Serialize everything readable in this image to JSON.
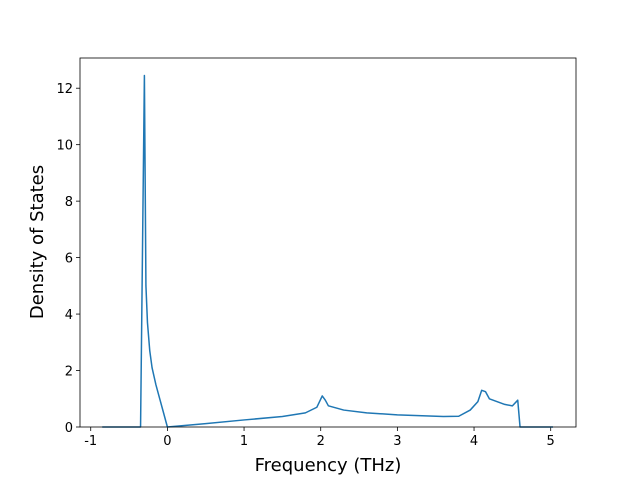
{
  "chart_data": {
    "type": "line",
    "xlabel": "Frequency (THz)",
    "ylabel": "Density of States",
    "x": [
      -0.85,
      -0.6,
      -0.35,
      -0.3,
      -0.28,
      -0.26,
      -0.23,
      -0.2,
      -0.15,
      -0.1,
      -0.05,
      0,
      0.5,
      1,
      1.5,
      1.8,
      1.95,
      2.02,
      2.06,
      2.1,
      2.3,
      2.6,
      3,
      3.6,
      3.8,
      3.95,
      4.05,
      4.1,
      4.15,
      4.2,
      4.4,
      4.5,
      4.57,
      4.6,
      5.03
    ],
    "values": [
      0,
      0,
      0,
      12.45,
      5.0,
      3.7,
      2.7,
      2.1,
      1.5,
      1.0,
      0.5,
      0,
      0.12,
      0.25,
      0.37,
      0.5,
      0.7,
      1.1,
      0.95,
      0.75,
      0.6,
      0.5,
      0.43,
      0.37,
      0.38,
      0.6,
      0.9,
      1.3,
      1.25,
      1.0,
      0.8,
      0.75,
      0.95,
      0,
      0
    ],
    "color": "#1f77b4",
    "xlim": [
      -1.14,
      5.33
    ],
    "xticks": [
      -1,
      0,
      1,
      2,
      3,
      4,
      5
    ],
    "ylim": [
      0,
      13.07
    ],
    "yticks": [
      0,
      2,
      4,
      6,
      8,
      10,
      12
    ]
  }
}
